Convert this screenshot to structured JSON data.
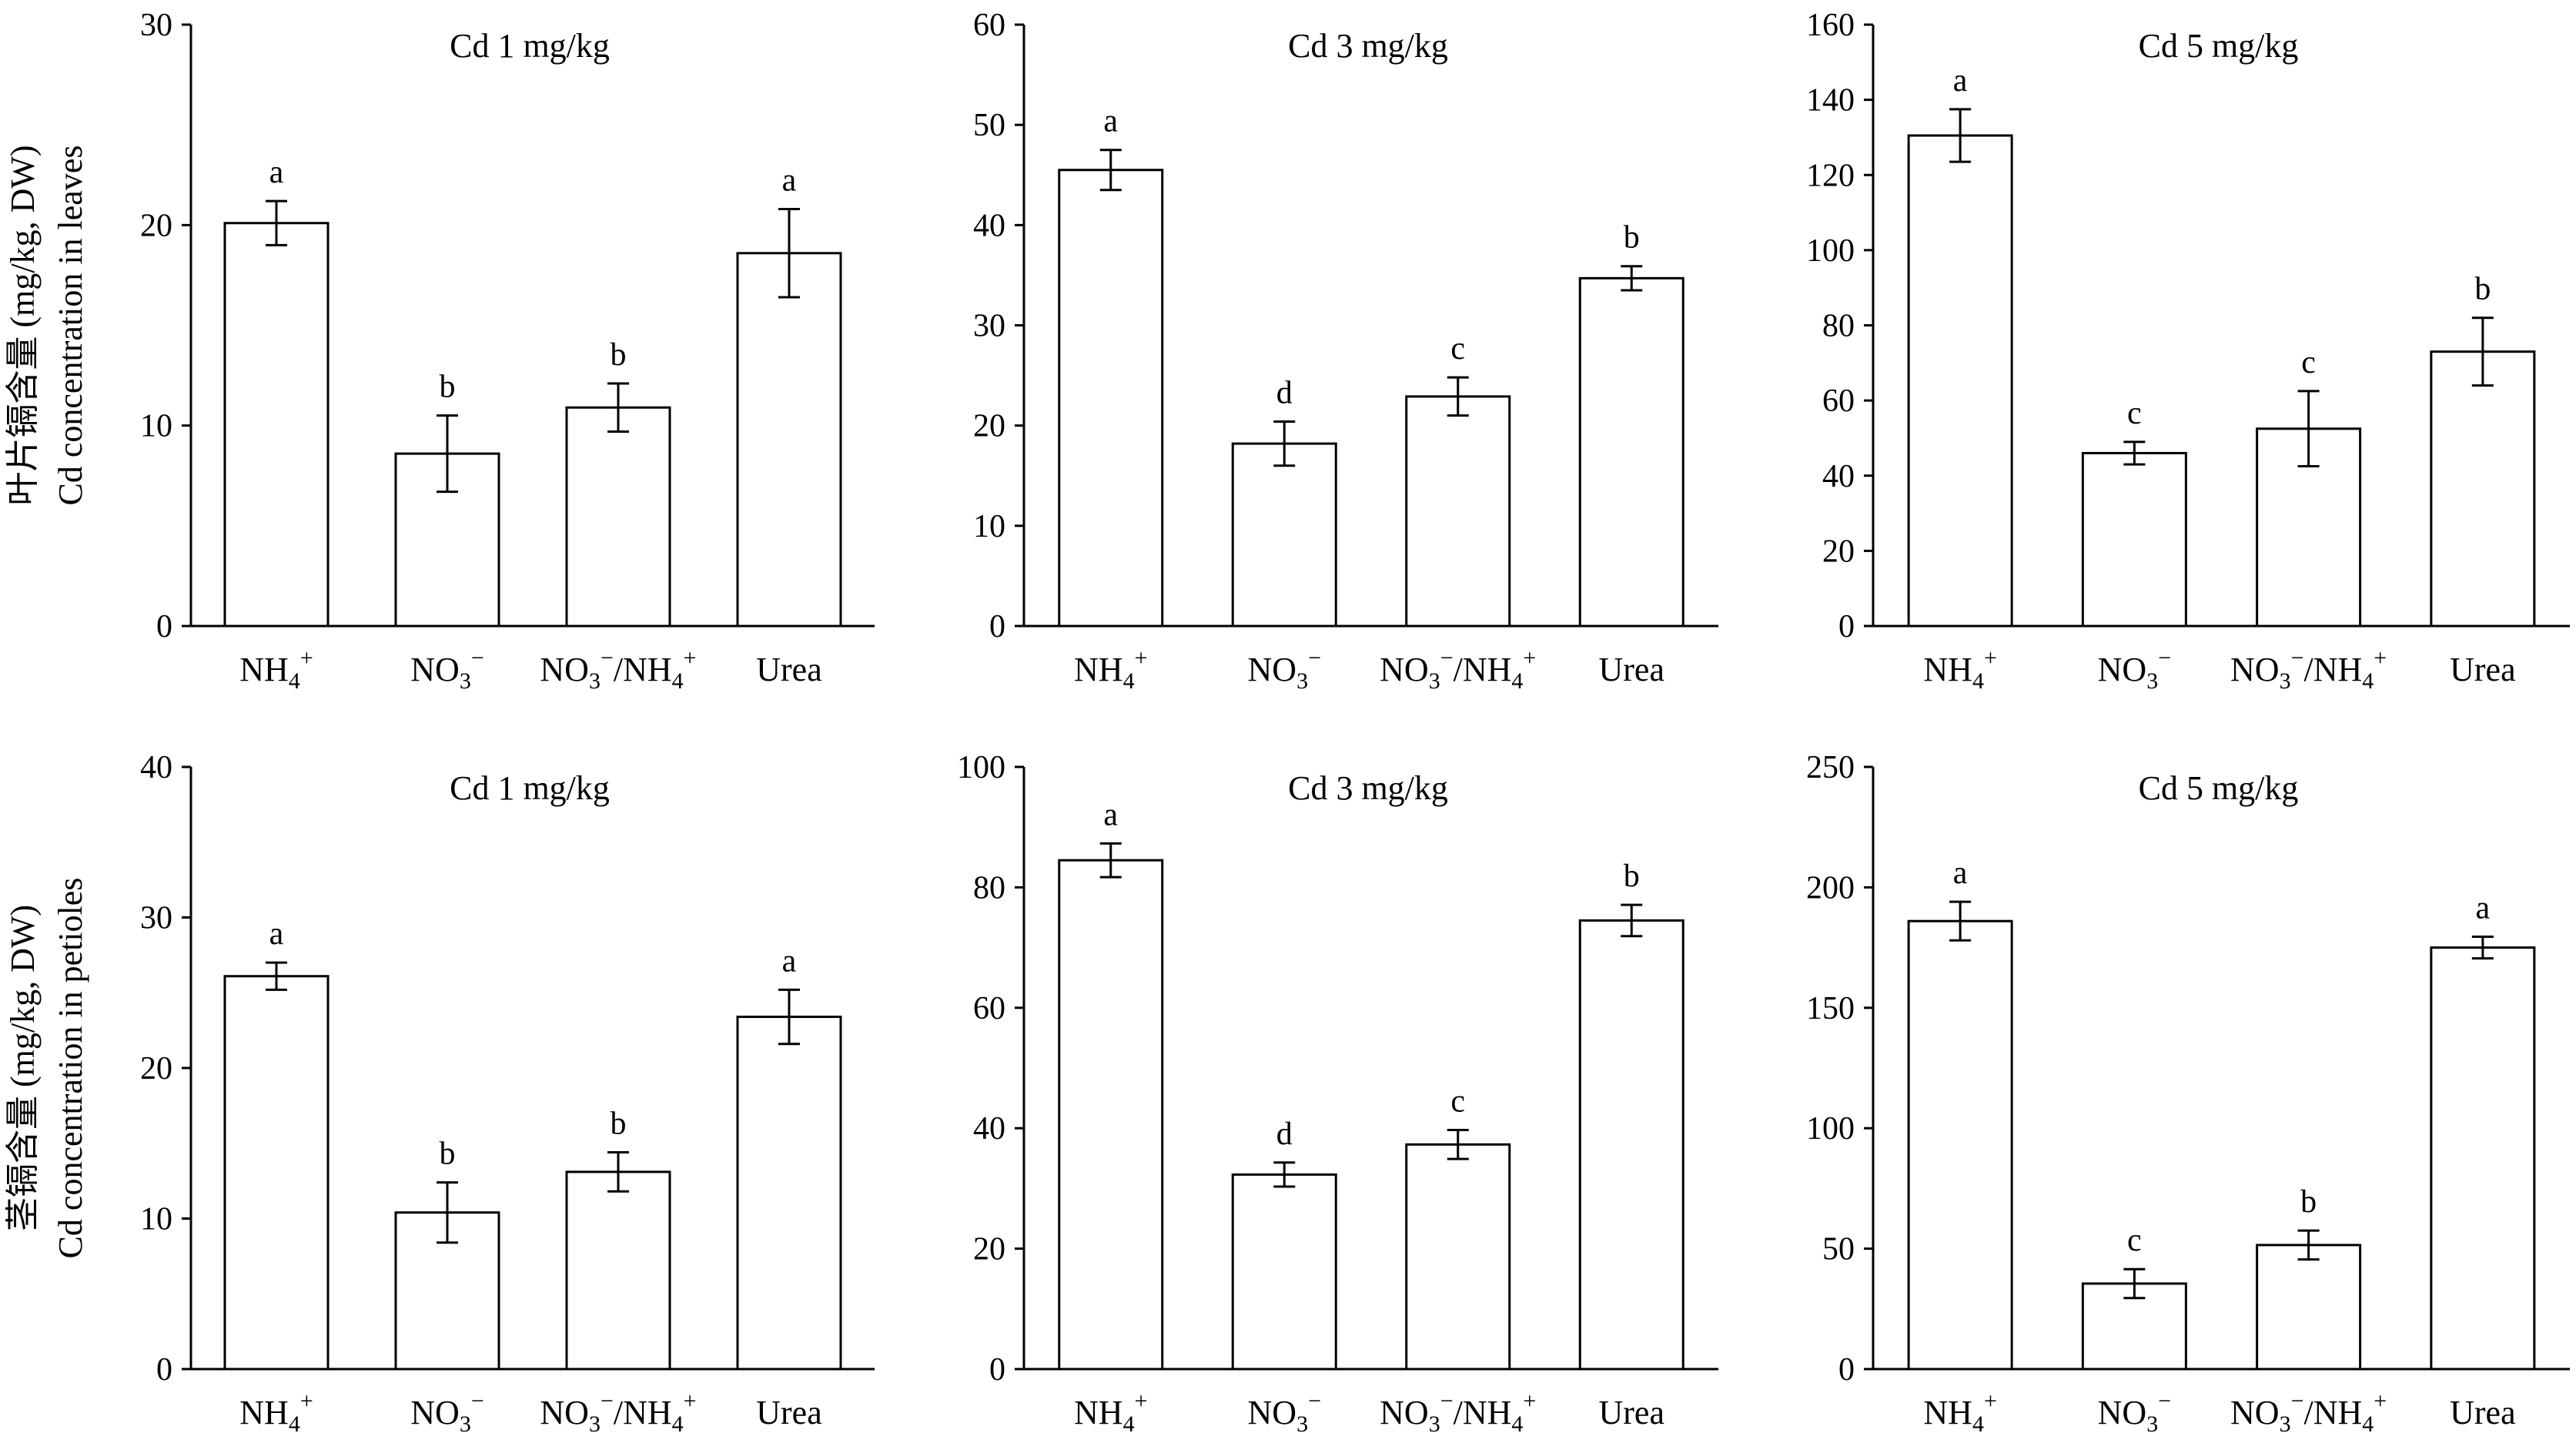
{
  "figure": {
    "ylabel_rows": [
      [
        "叶片镉含量 (mg/kg, DW)",
        "Cd concentration in leaves"
      ],
      [
        "茎镉含量 (mg/kg, DW)",
        "Cd concentration in petioles"
      ]
    ]
  },
  "chart_data": [
    {
      "type": "bar",
      "row": 0,
      "col": 0,
      "title": "Cd 1 mg/kg",
      "categories": [
        {
          "base": "NH",
          "sub": "4",
          "sup": "+"
        },
        {
          "base": "NO",
          "sub": "3",
          "sup": "−"
        },
        {
          "base": "NO",
          "sub": "3",
          "sup": "−",
          "tail": "/NH",
          "tsub": "4",
          "tsup": "+"
        },
        {
          "base": "Urea"
        }
      ],
      "values": [
        20.1,
        8.6,
        10.9,
        18.6
      ],
      "errors": [
        1.1,
        1.9,
        1.2,
        2.2
      ],
      "letters": [
        "a",
        "b",
        "b",
        "a"
      ],
      "ylim": [
        0,
        30
      ],
      "yticks": [
        0,
        10,
        20,
        30
      ],
      "ylabel": [
        "叶片镉含量 (mg/kg, DW)",
        "Cd concentration in leaves"
      ]
    },
    {
      "type": "bar",
      "row": 0,
      "col": 1,
      "title": "Cd 3 mg/kg",
      "categories": [
        {
          "base": "NH",
          "sub": "4",
          "sup": "+"
        },
        {
          "base": "NO",
          "sub": "3",
          "sup": "−"
        },
        {
          "base": "NO",
          "sub": "3",
          "sup": "−",
          "tail": "/NH",
          "tsub": "4",
          "tsup": "+"
        },
        {
          "base": "Urea"
        }
      ],
      "values": [
        45.5,
        18.2,
        22.9,
        34.7
      ],
      "errors": [
        2.0,
        2.2,
        1.9,
        1.2
      ],
      "letters": [
        "a",
        "d",
        "c",
        "b"
      ],
      "ylim": [
        0,
        60
      ],
      "yticks": [
        0,
        10,
        20,
        30,
        40,
        50,
        60
      ]
    },
    {
      "type": "bar",
      "row": 0,
      "col": 2,
      "title": "Cd 5 mg/kg",
      "categories": [
        {
          "base": "NH",
          "sub": "4",
          "sup": "+"
        },
        {
          "base": "NO",
          "sub": "3",
          "sup": "−"
        },
        {
          "base": "NO",
          "sub": "3",
          "sup": "−",
          "tail": "/NH",
          "tsub": "4",
          "tsup": "+"
        },
        {
          "base": "Urea"
        }
      ],
      "values": [
        130.5,
        46.0,
        52.5,
        73.0
      ],
      "errors": [
        7.0,
        3.0,
        10.0,
        9.0
      ],
      "letters": [
        "a",
        "c",
        "c",
        "b"
      ],
      "ylim": [
        0,
        160
      ],
      "yticks": [
        0,
        20,
        40,
        60,
        80,
        100,
        120,
        140,
        160
      ]
    },
    {
      "type": "bar",
      "row": 1,
      "col": 0,
      "title": "Cd 1 mg/kg",
      "categories": [
        {
          "base": "NH",
          "sub": "4",
          "sup": "+"
        },
        {
          "base": "NO",
          "sub": "3",
          "sup": "−"
        },
        {
          "base": "NO",
          "sub": "3",
          "sup": "−",
          "tail": "/NH",
          "tsub": "4",
          "tsup": "+"
        },
        {
          "base": "Urea"
        }
      ],
      "values": [
        26.1,
        10.4,
        13.1,
        23.4
      ],
      "errors": [
        0.9,
        2.0,
        1.3,
        1.8
      ],
      "letters": [
        "a",
        "b",
        "b",
        "a"
      ],
      "ylim": [
        0,
        40
      ],
      "yticks": [
        0,
        10,
        20,
        30,
        40
      ],
      "ylabel": [
        "茎镉含量 (mg/kg, DW)",
        "Cd concentration in petioles"
      ]
    },
    {
      "type": "bar",
      "row": 1,
      "col": 1,
      "title": "Cd 3 mg/kg",
      "categories": [
        {
          "base": "NH",
          "sub": "4",
          "sup": "+"
        },
        {
          "base": "NO",
          "sub": "3",
          "sup": "−"
        },
        {
          "base": "NO",
          "sub": "3",
          "sup": "−",
          "tail": "/NH",
          "tsub": "4",
          "tsup": "+"
        },
        {
          "base": "Urea"
        }
      ],
      "values": [
        84.5,
        32.3,
        37.3,
        74.5
      ],
      "errors": [
        2.8,
        2.0,
        2.4,
        2.6
      ],
      "letters": [
        "a",
        "d",
        "c",
        "b"
      ],
      "ylim": [
        0,
        100
      ],
      "yticks": [
        0,
        20,
        40,
        60,
        80,
        100
      ]
    },
    {
      "type": "bar",
      "row": 1,
      "col": 2,
      "title": "Cd 5 mg/kg",
      "categories": [
        {
          "base": "NH",
          "sub": "4",
          "sup": "+"
        },
        {
          "base": "NO",
          "sub": "3",
          "sup": "−"
        },
        {
          "base": "NO",
          "sub": "3",
          "sup": "−",
          "tail": "/NH",
          "tsub": "4",
          "tsup": "+"
        },
        {
          "base": "Urea"
        }
      ],
      "values": [
        186.0,
        35.5,
        51.5,
        175.0
      ],
      "errors": [
        8.0,
        6.0,
        6.0,
        4.5
      ],
      "letters": [
        "a",
        "c",
        "b",
        "a"
      ],
      "ylim": [
        0,
        250
      ],
      "yticks": [
        0,
        50,
        100,
        150,
        200,
        250
      ]
    }
  ]
}
